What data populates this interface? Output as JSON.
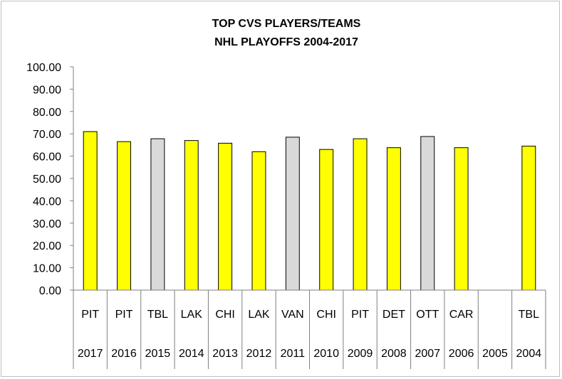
{
  "chart_data": {
    "type": "bar",
    "title_line1": "TOP CVS PLAYERS/TEAMS",
    "title_line2": "NHL PLAYOFFS 2004-2017",
    "ylim": [
      0,
      100
    ],
    "y_ticks": [
      "0.00",
      "10.00",
      "20.00",
      "30.00",
      "40.00",
      "50.00",
      "60.00",
      "70.00",
      "80.00",
      "90.00",
      "100.00"
    ],
    "categories": [
      {
        "team": "PIT",
        "year": "2017",
        "value": 71.0,
        "color": "#ffff00"
      },
      {
        "team": "PIT",
        "year": "2016",
        "value": 66.5,
        "color": "#ffff00"
      },
      {
        "team": "TBL",
        "year": "2015",
        "value": 67.8,
        "color": "#d9d9d9"
      },
      {
        "team": "LAK",
        "year": "2014",
        "value": 67.0,
        "color": "#ffff00"
      },
      {
        "team": "CHI",
        "year": "2013",
        "value": 65.8,
        "color": "#ffff00"
      },
      {
        "team": "LAK",
        "year": "2012",
        "value": 62.0,
        "color": "#ffff00"
      },
      {
        "team": "VAN",
        "year": "2011",
        "value": 68.5,
        "color": "#d9d9d9"
      },
      {
        "team": "CHI",
        "year": "2010",
        "value": 63.0,
        "color": "#ffff00"
      },
      {
        "team": "PIT",
        "year": "2009",
        "value": 67.8,
        "color": "#ffff00"
      },
      {
        "team": "DET",
        "year": "2008",
        "value": 63.8,
        "color": "#ffff00"
      },
      {
        "team": "OTT",
        "year": "2007",
        "value": 68.8,
        "color": "#d9d9d9"
      },
      {
        "team": "CAR",
        "year": "2006",
        "value": 63.8,
        "color": "#ffff00"
      },
      {
        "team": "",
        "year": "2005",
        "value": null,
        "color": "#ffff00"
      },
      {
        "team": "TBL",
        "year": "2004",
        "value": 64.5,
        "color": "#ffff00"
      }
    ]
  }
}
